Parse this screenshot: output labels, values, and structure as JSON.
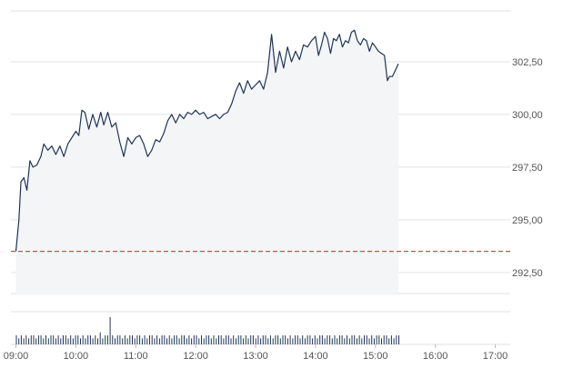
{
  "chart_data": {
    "type": "area",
    "colors": {
      "line": "#1f3554",
      "area": "#f4f5f7",
      "reference_line": "#d94a4a",
      "grid": "#e2e2e2",
      "volume_bars": "#1f3554"
    },
    "y_ticks": [
      "302,50",
      "300,00",
      "297,50",
      "295,00",
      "292,50"
    ],
    "x_ticks": [
      "09:00",
      "10:00",
      "11:00",
      "12:00",
      "13:00",
      "14:00",
      "15:00",
      "16:00",
      "17:00"
    ],
    "ylim": [
      291.5,
      305.0
    ],
    "xlim": [
      "08:55",
      "17:15"
    ],
    "reference_value": 293.5,
    "grid": true,
    "series": [
      {
        "values": [
          [
            "09:00",
            293.5
          ],
          [
            "09:03",
            295.0
          ],
          [
            "09:05",
            296.8
          ],
          [
            "09:08",
            297.0
          ],
          [
            "09:11",
            296.4
          ],
          [
            "09:14",
            297.8
          ],
          [
            "09:17",
            297.5
          ],
          [
            "09:21",
            297.6
          ],
          [
            "09:25",
            298.0
          ],
          [
            "09:28",
            298.6
          ],
          [
            "09:32",
            298.3
          ],
          [
            "09:36",
            298.5
          ],
          [
            "09:40",
            298.1
          ],
          [
            "09:44",
            298.5
          ],
          [
            "09:48",
            298.0
          ],
          [
            "09:52",
            298.6
          ],
          [
            "09:56",
            298.9
          ],
          [
            "10:00",
            299.2
          ],
          [
            "10:03",
            299.0
          ],
          [
            "10:06",
            300.2
          ],
          [
            "10:09",
            300.1
          ],
          [
            "10:13",
            299.3
          ],
          [
            "10:17",
            300.0
          ],
          [
            "10:21",
            299.4
          ],
          [
            "10:25",
            300.1
          ],
          [
            "10:28",
            299.5
          ],
          [
            "10:32",
            300.1
          ],
          [
            "10:36",
            299.4
          ],
          [
            "10:40",
            299.6
          ],
          [
            "10:44",
            298.7
          ],
          [
            "10:48",
            298.0
          ],
          [
            "10:52",
            298.9
          ],
          [
            "10:56",
            298.6
          ],
          [
            "11:00",
            298.9
          ],
          [
            "11:04",
            299.0
          ],
          [
            "11:08",
            298.6
          ],
          [
            "11:12",
            298.0
          ],
          [
            "11:16",
            298.3
          ],
          [
            "11:20",
            298.8
          ],
          [
            "11:24",
            298.7
          ],
          [
            "11:28",
            299.1
          ],
          [
            "11:32",
            299.7
          ],
          [
            "11:36",
            300.0
          ],
          [
            "11:40",
            299.6
          ],
          [
            "11:44",
            300.0
          ],
          [
            "11:48",
            299.8
          ],
          [
            "11:52",
            300.1
          ],
          [
            "11:56",
            300.0
          ],
          [
            "12:00",
            300.2
          ],
          [
            "12:04",
            300.0
          ],
          [
            "12:08",
            300.1
          ],
          [
            "12:12",
            299.8
          ],
          [
            "12:16",
            299.9
          ],
          [
            "12:20",
            300.0
          ],
          [
            "12:24",
            299.8
          ],
          [
            "12:28",
            300.0
          ],
          [
            "12:32",
            300.1
          ],
          [
            "12:36",
            300.5
          ],
          [
            "12:40",
            301.1
          ],
          [
            "12:44",
            301.5
          ],
          [
            "12:48",
            301.0
          ],
          [
            "12:52",
            301.6
          ],
          [
            "12:56",
            301.2
          ],
          [
            "13:00",
            301.4
          ],
          [
            "13:04",
            301.6
          ],
          [
            "13:08",
            301.2
          ],
          [
            "13:12",
            302.0
          ],
          [
            "13:16",
            303.8
          ],
          [
            "13:20",
            302.0
          ],
          [
            "13:24",
            303.0
          ],
          [
            "13:28",
            302.2
          ],
          [
            "13:32",
            303.2
          ],
          [
            "13:36",
            302.5
          ],
          [
            "13:40",
            303.0
          ],
          [
            "13:44",
            302.6
          ],
          [
            "13:48",
            303.3
          ],
          [
            "13:52",
            303.2
          ],
          [
            "13:56",
            303.5
          ],
          [
            "14:00",
            303.7
          ],
          [
            "14:03",
            302.8
          ],
          [
            "14:06",
            303.3
          ],
          [
            "14:09",
            303.9
          ],
          [
            "14:12",
            303.6
          ],
          [
            "14:15",
            302.9
          ],
          [
            "14:18",
            303.6
          ],
          [
            "14:21",
            303.5
          ],
          [
            "14:24",
            303.8
          ],
          [
            "14:27",
            303.2
          ],
          [
            "14:30",
            303.5
          ],
          [
            "14:33",
            303.4
          ],
          [
            "14:36",
            303.9
          ],
          [
            "14:39",
            304.0
          ],
          [
            "14:42",
            303.5
          ],
          [
            "14:45",
            303.3
          ],
          [
            "14:48",
            303.6
          ],
          [
            "14:51",
            303.5
          ],
          [
            "14:54",
            303.0
          ],
          [
            "14:57",
            303.4
          ],
          [
            "15:00",
            303.2
          ],
          [
            "15:03",
            303.0
          ],
          [
            "15:06",
            302.9
          ],
          [
            "15:09",
            302.8
          ],
          [
            "15:12",
            301.6
          ],
          [
            "15:14",
            301.8
          ],
          [
            "15:17",
            301.8
          ],
          [
            "15:20",
            302.1
          ],
          [
            "15:23",
            302.4
          ]
        ]
      }
    ],
    "volume": {
      "bars": [
        3,
        2,
        3,
        2,
        3,
        2,
        3,
        3,
        2,
        3,
        3,
        2,
        3,
        2,
        3,
        3,
        2,
        3,
        2,
        3,
        3,
        2,
        3,
        2,
        3,
        3,
        2,
        3,
        2,
        3,
        3,
        2,
        3,
        2,
        4,
        2,
        3,
        3,
        5,
        3,
        2,
        3,
        3,
        2,
        3,
        2,
        3,
        3,
        2,
        3,
        3,
        2,
        3,
        2,
        3,
        3,
        2,
        3,
        2,
        3,
        3,
        2,
        3,
        2,
        3,
        3,
        2,
        3,
        3,
        2,
        3,
        2,
        3,
        3,
        2,
        3,
        2,
        3,
        3,
        2,
        3,
        2,
        3,
        3,
        2,
        3,
        3,
        2,
        3,
        2,
        3,
        3,
        2,
        3,
        2,
        3,
        3,
        2,
        3,
        2,
        3,
        3,
        2,
        3,
        2,
        3,
        3,
        2,
        3,
        3,
        2,
        3,
        2,
        3,
        3,
        2,
        3,
        2,
        3,
        3,
        2,
        3,
        2,
        3,
        3,
        2,
        3,
        3,
        2,
        3,
        2,
        3,
        3,
        2,
        3,
        2,
        3,
        3,
        2,
        3,
        2,
        3,
        3,
        2,
        3,
        2,
        3,
        3,
        2,
        3,
        3,
        2,
        3,
        2,
        3,
        3
      ]
    }
  }
}
